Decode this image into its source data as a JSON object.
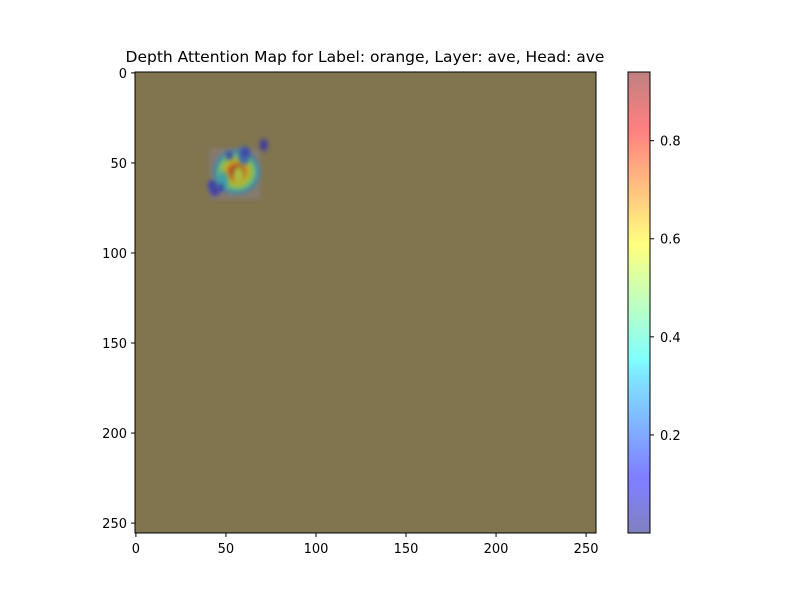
{
  "chart_data": {
    "type": "heatmap",
    "title": "Depth Attention Map for Label: orange, Layer: ave, Head: ave",
    "xlabel": "",
    "ylabel": "",
    "xlim": [
      0,
      255
    ],
    "ylim": [
      255,
      0
    ],
    "x_ticks": [
      0,
      50,
      100,
      150,
      200,
      250
    ],
    "y_ticks": [
      0,
      50,
      100,
      150,
      200,
      250
    ],
    "colormap": "jet",
    "alpha": 0.5,
    "background_color": "#80754f",
    "colorbar": {
      "min": 0.0,
      "max": 0.94,
      "ticks": [
        0.2,
        0.4,
        0.6,
        0.8
      ]
    },
    "hotspots": [
      {
        "x": 55,
        "y": 55,
        "value": 0.94
      },
      {
        "x": 57,
        "y": 57,
        "value": 0.55
      },
      {
        "x": 48,
        "y": 60,
        "value": 0.3
      },
      {
        "x": 43,
        "y": 64,
        "value": 0.15
      },
      {
        "x": 60,
        "y": 46,
        "value": 0.2
      },
      {
        "x": 71,
        "y": 40,
        "value": 0.1
      }
    ]
  }
}
